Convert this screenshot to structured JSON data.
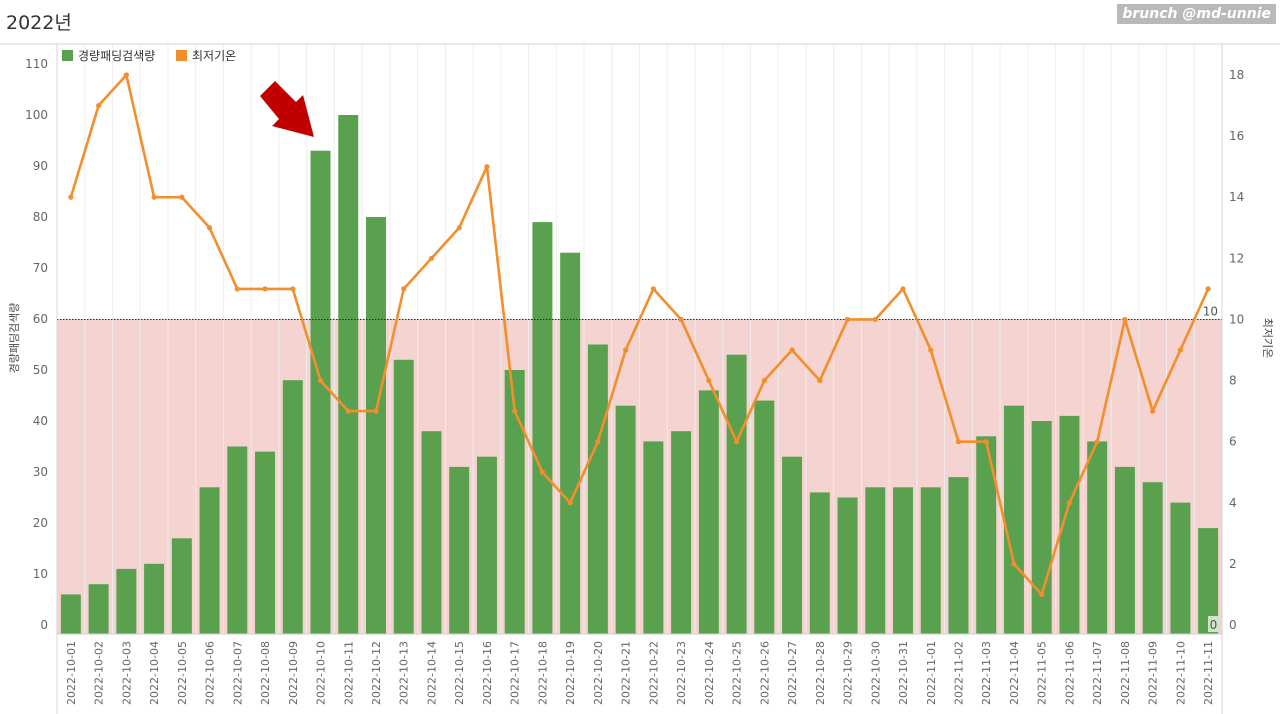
{
  "page": {
    "title": "2022년",
    "watermark": "brunch @md-unnie"
  },
  "colors": {
    "bar": "#59a14f",
    "line": "#f28e2b",
    "band": "#f4d3d0",
    "reference_line": "#8b0000",
    "arrow": "#c00000",
    "grid": "#eeeeee",
    "axis_text": "#666666"
  },
  "chart_data": {
    "type": "bar",
    "categories": [
      "2022-10-01",
      "2022-10-02",
      "2022-10-03",
      "2022-10-04",
      "2022-10-05",
      "2022-10-06",
      "2022-10-07",
      "2022-10-08",
      "2022-10-09",
      "2022-10-10",
      "2022-10-11",
      "2022-10-12",
      "2022-10-13",
      "2022-10-14",
      "2022-10-15",
      "2022-10-16",
      "2022-10-17",
      "2022-10-18",
      "2022-10-19",
      "2022-10-20",
      "2022-10-21",
      "2022-10-22",
      "2022-10-23",
      "2022-10-24",
      "2022-10-25",
      "2022-10-26",
      "2022-10-27",
      "2022-10-28",
      "2022-10-29",
      "2022-10-30",
      "2022-10-31",
      "2022-11-01",
      "2022-11-02",
      "2022-11-03",
      "2022-11-04",
      "2022-11-05",
      "2022-11-06",
      "2022-11-07",
      "2022-11-08",
      "2022-11-09",
      "2022-11-10",
      "2022-11-11"
    ],
    "series": [
      {
        "name": "경량패딩검색량",
        "type": "bar",
        "axis": "left",
        "values": [
          6,
          8,
          11,
          12,
          17,
          27,
          35,
          34,
          48,
          93,
          100,
          80,
          52,
          38,
          31,
          33,
          50,
          79,
          73,
          55,
          43,
          36,
          38,
          46,
          53,
          44,
          33,
          26,
          25,
          27,
          27,
          27,
          29,
          37,
          43,
          40,
          41,
          36,
          31,
          28,
          24,
          19
        ]
      },
      {
        "name": "최저기온",
        "type": "line",
        "axis": "right",
        "values": [
          14,
          17,
          18,
          14,
          14,
          13,
          11,
          11,
          11,
          8,
          7,
          7,
          11,
          12,
          13,
          15,
          7,
          5,
          4,
          6,
          9,
          11,
          10,
          8,
          6,
          8,
          9,
          8,
          10,
          10,
          11,
          9,
          6,
          6,
          2,
          1,
          4,
          6,
          10,
          7,
          9,
          11
        ]
      }
    ],
    "y_left": {
      "label": "경량패딩검색량",
      "ticks": [
        "0",
        "10",
        "20",
        "30",
        "40",
        "50",
        "60",
        "70",
        "80",
        "90",
        "100",
        "110"
      ],
      "range": [
        0,
        110
      ]
    },
    "y_right": {
      "label": "최저기온",
      "ticks": [
        "0",
        "2",
        "4",
        "6",
        "8",
        "10",
        "12",
        "14",
        "16",
        "18"
      ],
      "range": [
        0,
        18
      ]
    },
    "reference_band": {
      "from": 0,
      "to": 60,
      "axis": "left"
    },
    "reference_line": {
      "value": 10,
      "axis": "right",
      "label": "10"
    },
    "band_label": "0",
    "arrow_annotation": {
      "points_to": "2022-10-10",
      "direction": "down-right"
    },
    "legend_position": "top-left",
    "grid": true
  }
}
